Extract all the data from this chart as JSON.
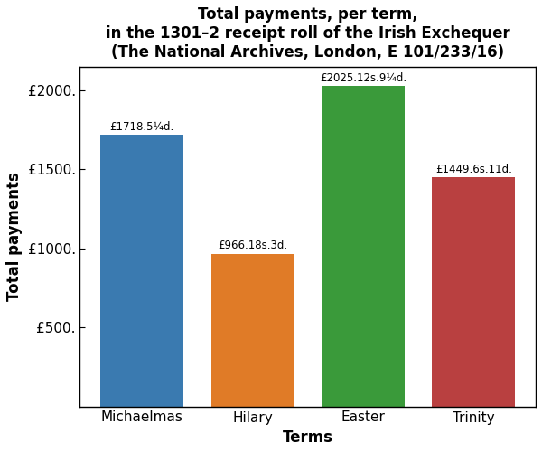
{
  "categories": [
    "Michaelmas",
    "Hilary",
    "Easter",
    "Trinity"
  ],
  "values": [
    1718.26,
    966.91,
    2025.64,
    1449.35
  ],
  "bar_labels": [
    "£1718.5¼d.",
    "£966.18s.3d.",
    "£2025.12s.9¼d.",
    "£1449.6s.11d."
  ],
  "bar_colors": [
    "#3a7ab0",
    "#e07b27",
    "#3a9a3a",
    "#b94040"
  ],
  "title_line1": "Total payments, per term,",
  "title_line2": "in the 1301–2 receipt roll of the Irish Exchequer",
  "title_line3": "(The National Archives, London, E 101/233/16)",
  "xlabel": "Terms",
  "ylabel": "Total payments",
  "yticks": [
    500,
    1000,
    1500,
    2000
  ],
  "ytick_labels": [
    "£500.",
    "£1000.",
    "£1500.",
    "£2000."
  ],
  "ylim": [
    0,
    2150
  ],
  "title_fontsize": 12,
  "label_fontsize": 8.5,
  "axis_label_fontsize": 12,
  "tick_fontsize": 11,
  "bar_width": 0.75
}
